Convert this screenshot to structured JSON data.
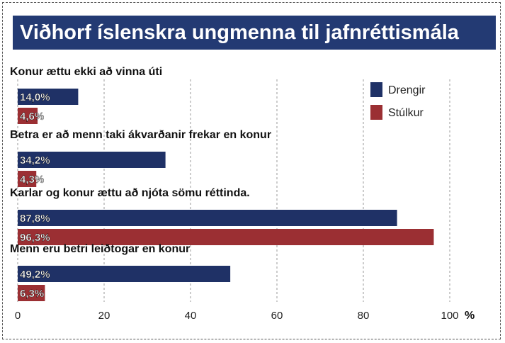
{
  "title": "Viðhorf íslenskra ungmenna til jafnréttismála",
  "colors": {
    "title_bg": "#233a73",
    "drengir": "#1f3166",
    "stulkur": "#9b2f33"
  },
  "chart_data": {
    "type": "bar",
    "orientation": "horizontal",
    "title": "Viðhorf íslenskra ungmenna til jafnréttismála",
    "categories": [
      "Konur ættu ekki að vinna úti",
      "Betra er að menn taki ákvarðanir frekar en konur",
      "Karlar og konur ættu að njóta sömu réttinda.",
      "Menn eru betri leiðtogar en konur"
    ],
    "series": [
      {
        "name": "Drengir",
        "values": [
          14.0,
          34.2,
          87.8,
          49.2
        ],
        "labels": [
          "14,0%",
          "34,2%",
          "87,8%",
          "49,2%"
        ],
        "color": "#1f3166"
      },
      {
        "name": "Stúlkur",
        "values": [
          4.6,
          4.3,
          96.3,
          6.3
        ],
        "labels": [
          "4,6%",
          "4,3%",
          "96,3%",
          "6,3%"
        ],
        "color": "#9b2f33"
      }
    ],
    "xlim": [
      0,
      100
    ],
    "xticks": [
      0,
      20,
      40,
      60,
      80,
      100
    ],
    "xtick_labels": [
      "0",
      "20",
      "40",
      "60",
      "80",
      "100"
    ],
    "xunit": "%",
    "grid": "vertical dashed",
    "legend": "top-right"
  }
}
